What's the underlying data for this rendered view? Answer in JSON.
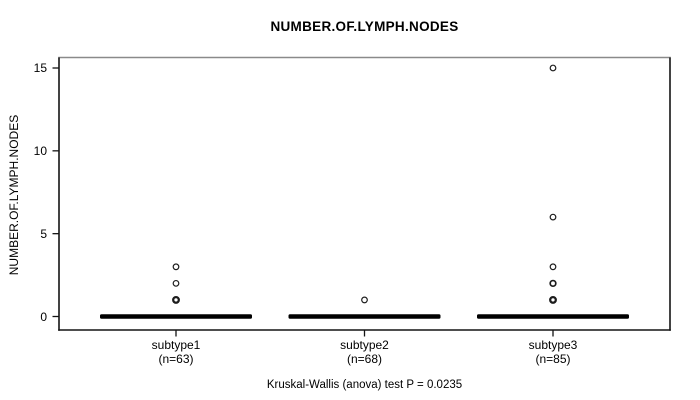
{
  "title": "NUMBER.OF.LYMPH.NODES",
  "caption": "Kruskal-Wallis (anova) test P = 0.0235",
  "chart_data": {
    "type": "boxplot",
    "title": "NUMBER.OF.LYMPH.NODES",
    "ylabel": "NUMBER.OF.LYMPH.NODES",
    "xlabel": "",
    "ylim": [
      0,
      15
    ],
    "yticks": [
      0,
      5,
      10,
      15
    ],
    "grid": "off",
    "caption": "Kruskal-Wallis (anova) test P = 0.0235",
    "groups": [
      {
        "label": "subtype1",
        "sublabel": "(n=63)",
        "n": 63,
        "median": 0,
        "q1": 0,
        "q3": 0,
        "whisker_low": 0,
        "whisker_high": 0,
        "outliers": [
          {
            "value": 3,
            "weight": "normal"
          },
          {
            "value": 2,
            "weight": "normal"
          },
          {
            "value": 1,
            "weight": "bold"
          }
        ]
      },
      {
        "label": "subtype2",
        "sublabel": "(n=68)",
        "n": 68,
        "median": 0,
        "q1": 0,
        "q3": 0,
        "whisker_low": 0,
        "whisker_high": 0,
        "outliers": [
          {
            "value": 1,
            "weight": "normal"
          }
        ]
      },
      {
        "label": "subtype3",
        "sublabel": "(n=85)",
        "n": 85,
        "median": 0,
        "q1": 0,
        "q3": 0,
        "whisker_low": 0,
        "whisker_high": 0,
        "outliers": [
          {
            "value": 15,
            "weight": "normal"
          },
          {
            "value": 6,
            "weight": "normal"
          },
          {
            "value": 3,
            "weight": "normal"
          },
          {
            "value": 2,
            "weight": "medium"
          },
          {
            "value": 1,
            "weight": "bold"
          }
        ]
      }
    ],
    "colors": {
      "background": "#ffffff",
      "box": "#000000",
      "outlier_stroke": "#1c1c1c",
      "frame_dark": "#141414",
      "frame_top": "#8a8a8a",
      "text": "#000000"
    }
  }
}
